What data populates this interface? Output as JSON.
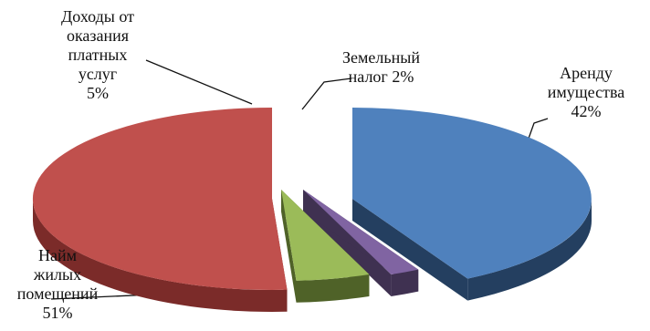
{
  "chart_data": {
    "type": "pie",
    "style": "3d-exploded",
    "title": "",
    "legend": "none",
    "slices": [
      {
        "key": "arenda",
        "lines": [
          "Аренду",
          "имущества",
          "42%"
        ],
        "value": 42,
        "color": "#4f81bd",
        "side_color": "#243f60"
      },
      {
        "key": "zemelny",
        "lines": [
          "Земельный",
          "налог 2%"
        ],
        "value": 2,
        "color": "#8064a2",
        "side_color": "#3f3151"
      },
      {
        "key": "dokhody",
        "lines": [
          "Доходы от",
          "оказания",
          "платных",
          "услуг",
          "5%"
        ],
        "value": 5,
        "color": "#9bbb59",
        "side_color": "#4f6228"
      },
      {
        "key": "naim",
        "lines": [
          "Найм",
          "жилых",
          "помещений",
          "51%"
        ],
        "value": 51,
        "color": "#c0504d",
        "side_color": "#7b2b29"
      }
    ]
  }
}
